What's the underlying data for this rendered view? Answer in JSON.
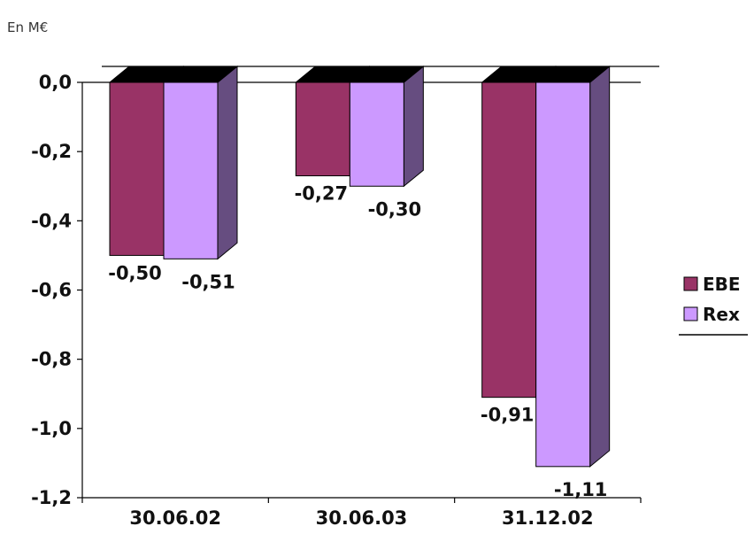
{
  "chart_data": {
    "type": "bar",
    "unit_label": "En M€",
    "categories": [
      "30.06.02",
      "30.06.03",
      "31.12.02"
    ],
    "series": [
      {
        "name": "EBE",
        "values": [
          -0.5,
          -0.27,
          -0.91
        ],
        "labels": [
          "-0,50",
          "-0,27",
          "-0,91"
        ],
        "color": "#993366",
        "side_color": "#6b2447"
      },
      {
        "name": "Rex",
        "values": [
          -0.51,
          -0.3,
          -1.11
        ],
        "labels": [
          "-0,51",
          "-0,30",
          "-1,11"
        ],
        "color": "#cc99ff",
        "side_color": "#664d80"
      }
    ],
    "ylim": [
      -1.2,
      0.0
    ],
    "yticks": [
      0.0,
      -0.2,
      -0.4,
      -0.6,
      -0.8,
      -1.0,
      -1.2
    ],
    "ytick_labels": [
      "0,0",
      "-0,2",
      "-0,4",
      "-0,6",
      "-0,8",
      "-1,0",
      "-1,2"
    ],
    "legend_position": "right",
    "grid": false,
    "three_d": true
  }
}
